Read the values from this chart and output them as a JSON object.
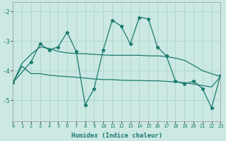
{
  "xlabel": "Humidex (Indice chaleur)",
  "bg_color": "#cbe8e3",
  "grid_color": "#b0d8d0",
  "line_color": "#1a7a6e",
  "xlim": [
    0,
    23
  ],
  "ylim": [
    -5.7,
    -1.7
  ],
  "yticks": [
    -5,
    -4,
    -3,
    -2
  ],
  "xticks": [
    0,
    1,
    2,
    3,
    4,
    5,
    6,
    7,
    8,
    9,
    10,
    11,
    12,
    13,
    14,
    15,
    16,
    17,
    18,
    19,
    20,
    21,
    22,
    23
  ],
  "series": [
    {
      "x": [
        0,
        1,
        2,
        3,
        4,
        5,
        6,
        7,
        8,
        9,
        10,
        11,
        12,
        13,
        14,
        15,
        16,
        17,
        18,
        19,
        20,
        21,
        22,
        23
      ],
      "y": [
        -4.4,
        -3.85,
        -4.1,
        -4.1,
        -4.15,
        -4.18,
        -4.2,
        -4.22,
        -4.25,
        -4.28,
        -4.3,
        -4.3,
        -4.32,
        -4.33,
        -4.33,
        -4.34,
        -4.34,
        -4.36,
        -4.38,
        -4.4,
        -4.45,
        -4.5,
        -4.55,
        -4.2
      ],
      "marker": false
    },
    {
      "x": [
        0,
        1,
        2,
        3,
        4,
        5,
        6,
        7,
        8,
        9,
        10,
        11,
        12,
        13,
        14,
        15,
        16,
        17,
        18,
        19,
        20,
        21,
        22,
        23
      ],
      "y": [
        -4.4,
        -3.75,
        -3.45,
        -3.2,
        -3.25,
        -3.35,
        -3.4,
        -3.42,
        -3.43,
        -3.45,
        -3.47,
        -3.48,
        -3.48,
        -3.48,
        -3.48,
        -3.5,
        -3.5,
        -3.52,
        -3.58,
        -3.65,
        -3.82,
        -4.0,
        -4.1,
        -4.2
      ],
      "marker": false
    },
    {
      "x": [
        0,
        2,
        3,
        4,
        5,
        6,
        7,
        8,
        9,
        10,
        11,
        12,
        13,
        14,
        15,
        16,
        17,
        18,
        19,
        20,
        21,
        22,
        23
      ],
      "y": [
        -4.4,
        -3.7,
        -3.1,
        -3.3,
        -3.2,
        -2.7,
        -3.35,
        -5.15,
        -4.6,
        -3.3,
        -2.3,
        -2.5,
        -3.1,
        -2.2,
        -2.25,
        -3.2,
        -3.5,
        -4.35,
        -4.45,
        -4.35,
        -4.6,
        -5.25,
        -4.15
      ],
      "marker": true
    }
  ]
}
